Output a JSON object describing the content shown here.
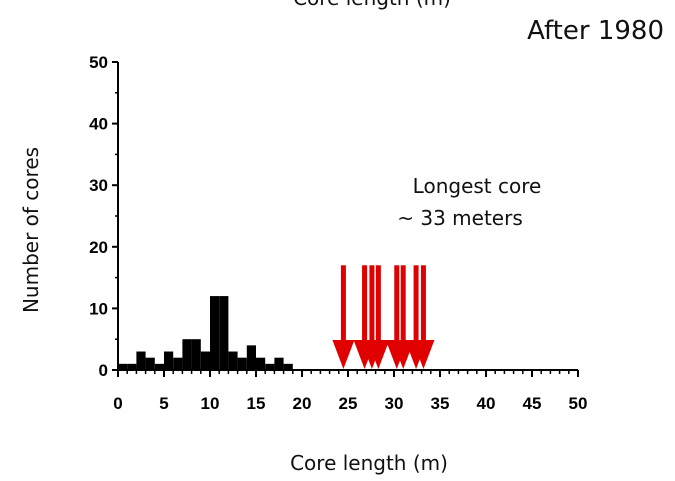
{
  "chart_data": {
    "type": "bar",
    "top_caption": "Core length (m)",
    "title": "After 1980",
    "xlabel": "Core length (m)",
    "ylabel": "Number of cores",
    "xlim": [
      0,
      50
    ],
    "ylim": [
      0,
      50
    ],
    "xticks": [
      0,
      5,
      10,
      15,
      20,
      25,
      30,
      35,
      40,
      45,
      50
    ],
    "yticks": [
      0,
      10,
      20,
      30,
      40,
      50
    ],
    "bin_width": 1,
    "bars": [
      {
        "x": 0,
        "value": 1
      },
      {
        "x": 1,
        "value": 1
      },
      {
        "x": 2,
        "value": 3
      },
      {
        "x": 3,
        "value": 2
      },
      {
        "x": 4,
        "value": 1
      },
      {
        "x": 5,
        "value": 3
      },
      {
        "x": 6,
        "value": 2
      },
      {
        "x": 7,
        "value": 5
      },
      {
        "x": 8,
        "value": 5
      },
      {
        "x": 9,
        "value": 3
      },
      {
        "x": 10,
        "value": 12
      },
      {
        "x": 11,
        "value": 12
      },
      {
        "x": 12,
        "value": 3
      },
      {
        "x": 13,
        "value": 2
      },
      {
        "x": 14,
        "value": 4
      },
      {
        "x": 15,
        "value": 2
      },
      {
        "x": 16,
        "value": 1
      },
      {
        "x": 17,
        "value": 2
      },
      {
        "x": 18,
        "value": 1
      }
    ],
    "red_arrows_x": [
      24.5,
      26.8,
      27.6,
      28.3,
      30.3,
      31.0,
      32.4,
      33.2
    ],
    "arrow_top_value": 17,
    "annotation_lines": [
      "Longest core",
      "~ 33 meters"
    ],
    "colors": {
      "bars": "#000000",
      "arrows": "#e00000"
    }
  }
}
